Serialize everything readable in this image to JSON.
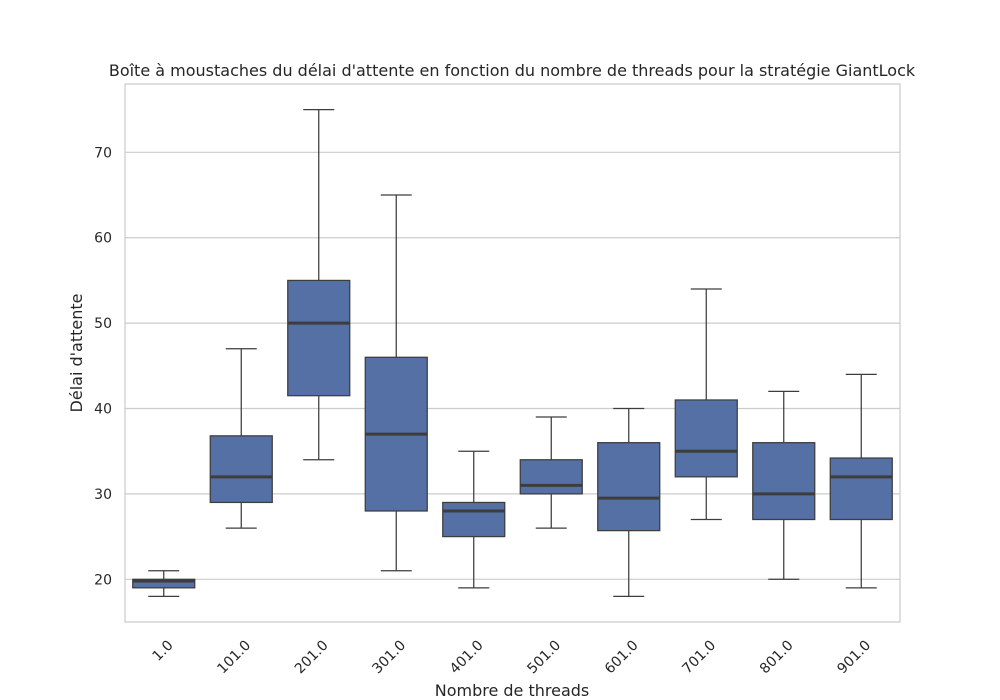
{
  "chart_data": {
    "type": "box",
    "title": "Boîte à moustaches du délai d'attente en fonction du nombre de threads pour la stratégie GiantLock",
    "xlabel": "Nombre de threads",
    "ylabel": "Délai d'attente",
    "categories": [
      "1.0",
      "101.0",
      "201.0",
      "301.0",
      "401.0",
      "501.0",
      "601.0",
      "701.0",
      "801.0",
      "901.0"
    ],
    "ylim": [
      15,
      78
    ],
    "yticks": [
      20,
      30,
      40,
      50,
      60,
      70
    ],
    "grid": true,
    "box_color": "#5470a5",
    "edge_color": "#3d3d3d",
    "boxes": [
      {
        "whisker_low": 18,
        "q1": 19,
        "median": 19.8,
        "q3": 20,
        "whisker_high": 21
      },
      {
        "whisker_low": 26,
        "q1": 29,
        "median": 32,
        "q3": 36.8,
        "whisker_high": 47
      },
      {
        "whisker_low": 34,
        "q1": 41.5,
        "median": 50,
        "q3": 55,
        "whisker_high": 75
      },
      {
        "whisker_low": 21,
        "q1": 28,
        "median": 37,
        "q3": 46,
        "whisker_high": 65
      },
      {
        "whisker_low": 19,
        "q1": 25,
        "median": 28,
        "q3": 29,
        "whisker_high": 35
      },
      {
        "whisker_low": 26,
        "q1": 30,
        "median": 31,
        "q3": 34,
        "whisker_high": 39
      },
      {
        "whisker_low": 18,
        "q1": 25.7,
        "median": 29.5,
        "q3": 36,
        "whisker_high": 40
      },
      {
        "whisker_low": 27,
        "q1": 32,
        "median": 35,
        "q3": 41,
        "whisker_high": 54
      },
      {
        "whisker_low": 20,
        "q1": 27,
        "median": 30,
        "q3": 36,
        "whisker_high": 42
      },
      {
        "whisker_low": 19,
        "q1": 27,
        "median": 32,
        "q3": 34.2,
        "whisker_high": 44
      }
    ]
  }
}
